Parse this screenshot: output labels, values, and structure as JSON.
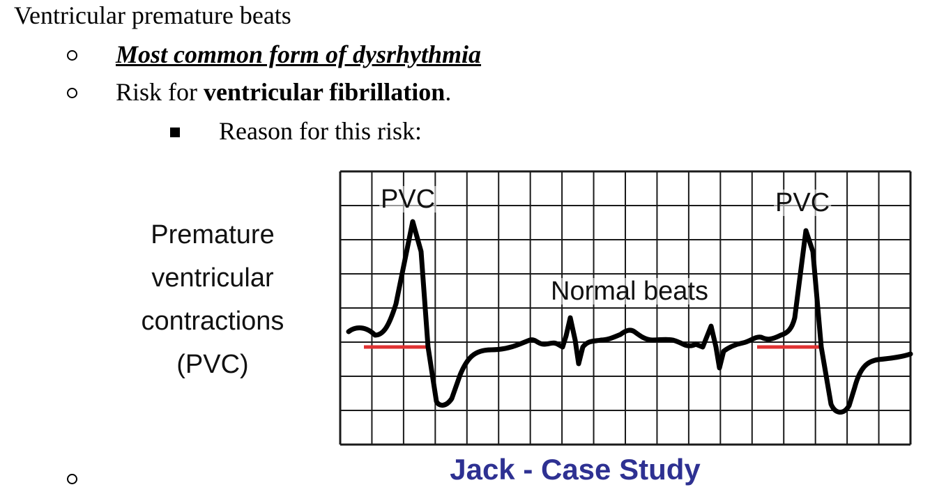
{
  "heading": "Ventricular premature beats",
  "bullets": [
    {
      "emphasis": "Most common form of dysrhythmia"
    },
    {
      "prefix": "Risk for ",
      "bold": "ventricular fibrillation",
      "suffix": "."
    }
  ],
  "sub_bullets": [
    {
      "text": "Reason for this risk:"
    }
  ],
  "figure": {
    "caption_lines": [
      "Premature",
      "ventricular",
      "contractions",
      "(PVC)"
    ],
    "ecg_labels": {
      "pvc_left": "PVC",
      "pvc_right": "PVC",
      "normal": "Normal beats"
    },
    "colors": {
      "trace": "#000000",
      "grid": "#1a1a1a",
      "baseline_marker": "#e03232"
    }
  },
  "footer": {
    "case_study": "Jack  - Case Study",
    "color": "#2e3192"
  }
}
